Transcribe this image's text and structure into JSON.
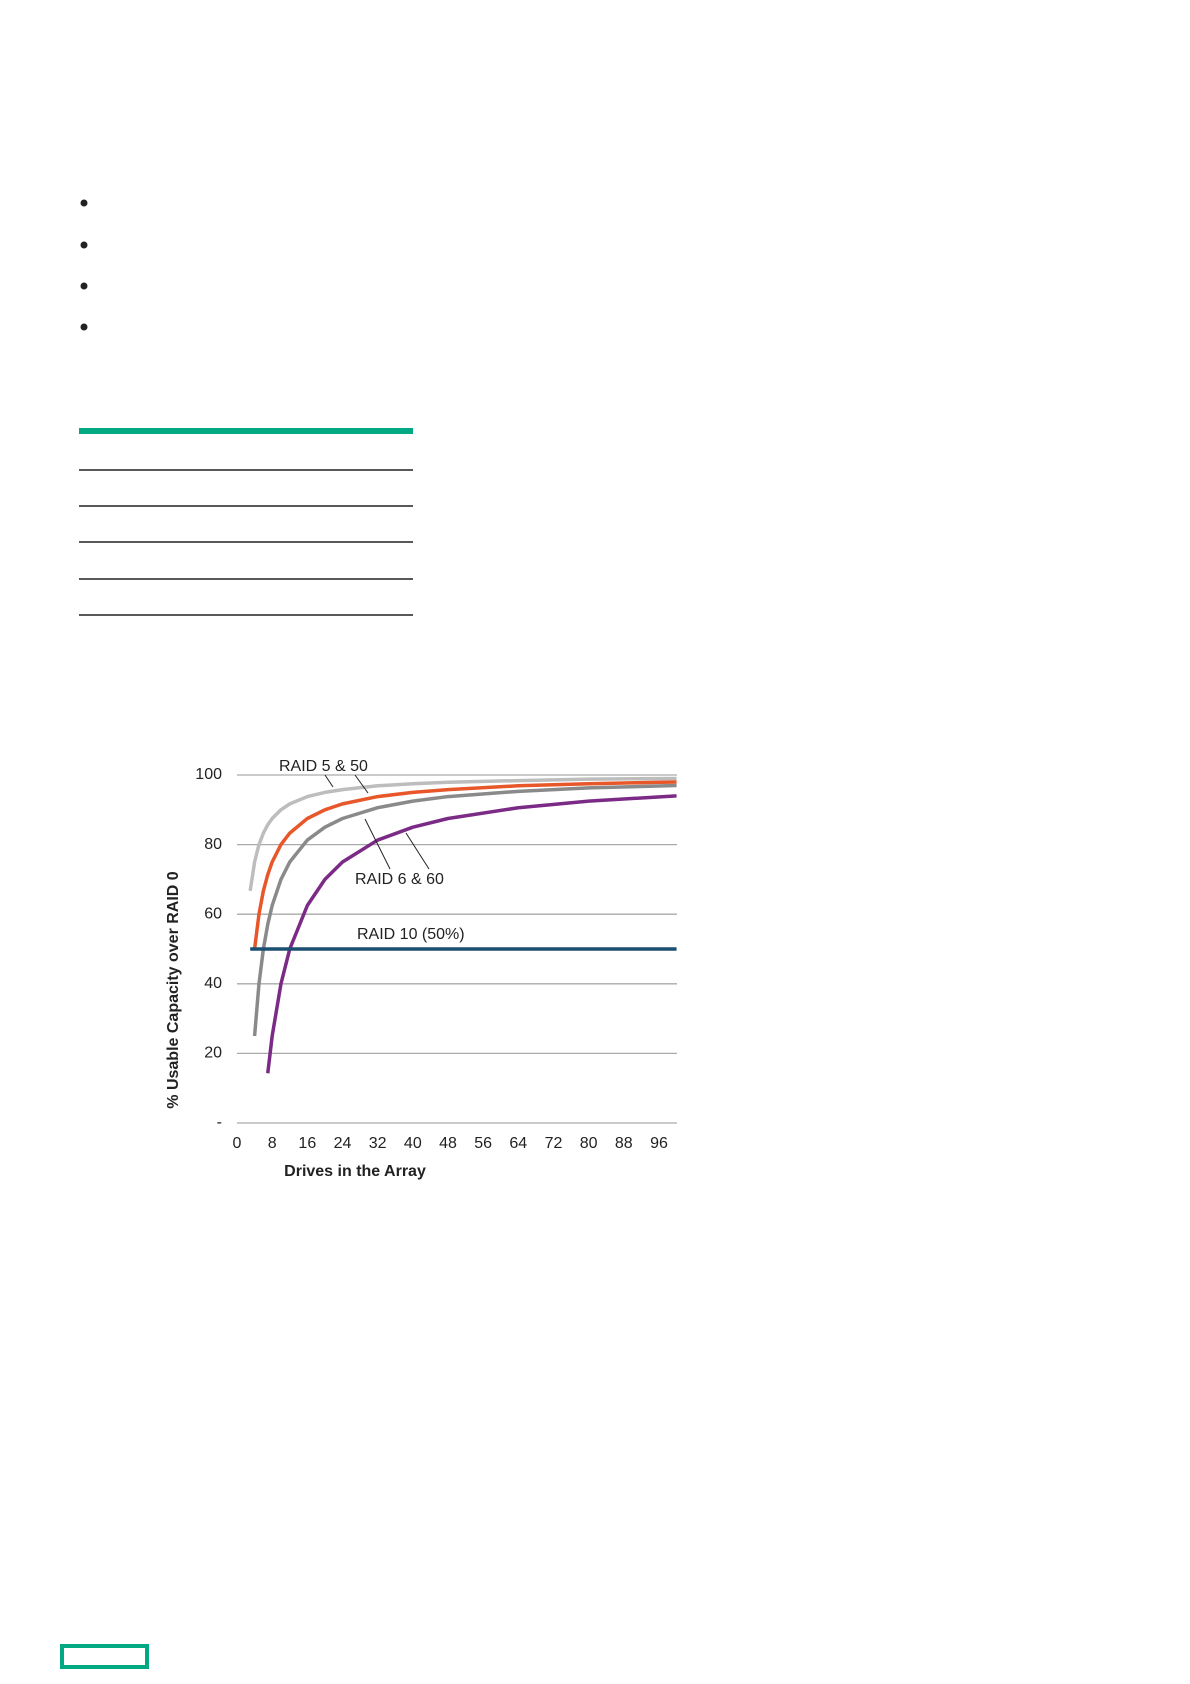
{
  "chart_data": {
    "type": "line",
    "y_label": "% Usable Capacity  over RAID 0",
    "x_label": "Drives in the Array",
    "annotations": [
      "RAID 5 & 50",
      "RAID 6 & 60",
      "RAID 10 (50%)"
    ],
    "x": [
      3,
      4,
      5,
      6,
      7,
      8,
      10,
      12,
      16,
      20,
      24,
      32,
      40,
      48,
      64,
      80,
      100
    ],
    "series": [
      {
        "color": "#bdbdbd",
        "values": [
          66.7,
          75,
          80,
          83.3,
          85.7,
          87.5,
          90,
          91.7,
          93.8,
          95,
          95.8,
          96.9,
          97.5,
          97.9,
          98.4,
          98.8,
          99
        ]
      },
      {
        "color": "#e8572a",
        "values": [
          null,
          50,
          60,
          66.7,
          71.4,
          75,
          80,
          83.3,
          87.5,
          90,
          91.7,
          93.8,
          95,
          95.8,
          96.9,
          97.5,
          98
        ]
      },
      {
        "color": "#8a8a8a",
        "values": [
          null,
          25,
          40,
          50,
          57.1,
          62.5,
          70,
          75,
          81.3,
          85,
          87.5,
          90.6,
          92.5,
          93.8,
          95.3,
          96.3,
          97
        ]
      },
      {
        "color": "#7b2a86",
        "values": [
          null,
          null,
          null,
          null,
          14.3,
          25,
          40,
          50,
          62.5,
          70,
          75,
          81.3,
          85,
          87.5,
          90.6,
          92.5,
          94
        ]
      },
      {
        "color": "#1b4f72",
        "values": [
          50,
          50,
          50,
          50,
          50,
          50,
          50,
          50,
          50,
          50,
          50,
          50,
          50,
          50,
          50,
          50,
          50
        ]
      }
    ],
    "xlim": [
      0,
      100
    ],
    "ylim": [
      0,
      100
    ],
    "xticks": [
      0,
      8,
      16,
      24,
      32,
      40,
      48,
      56,
      64,
      72,
      80,
      88,
      96
    ],
    "yticks": [
      {
        "value": 0,
        "label": "-"
      },
      20,
      40,
      60,
      80,
      100
    ],
    "grid": true
  }
}
